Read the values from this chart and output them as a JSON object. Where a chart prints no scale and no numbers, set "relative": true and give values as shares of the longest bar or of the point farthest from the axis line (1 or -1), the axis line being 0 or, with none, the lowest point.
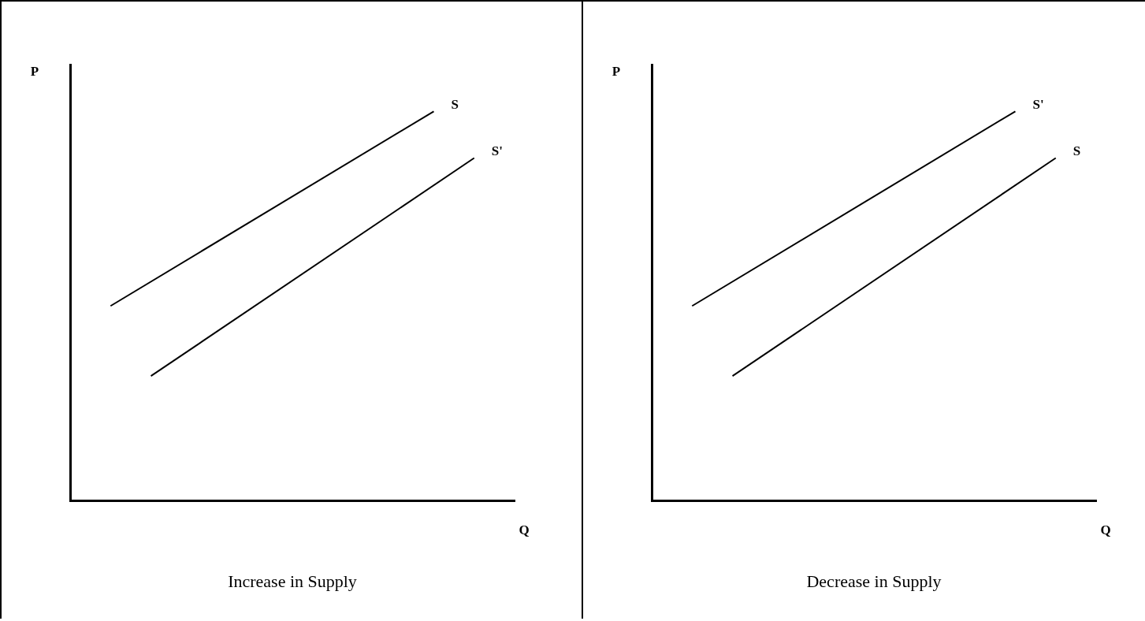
{
  "chart_data": [
    {
      "type": "line",
      "title": "Increase in Supply",
      "xlabel": "Q",
      "ylabel": "P",
      "relative": true,
      "grid": false,
      "legend": false,
      "marker": "none",
      "categories": [
        null,
        null,
        null,
        null,
        null,
        null,
        null,
        null,
        null,
        null,
        null,
        null
      ],
      "series": [
        {
          "name": "S",
          "color": "#000000",
          "values": [
            null,
            0.5,
            null,
            null,
            null,
            null,
            null,
            null,
            null,
            1.0,
            null,
            null
          ]
        },
        {
          "name": "S'",
          "color": "#000000",
          "values": [
            null,
            null,
            0.32,
            null,
            null,
            null,
            null,
            null,
            null,
            null,
            0.88,
            null
          ]
        }
      ]
    },
    {
      "type": "line",
      "title": "Decrease in Supply",
      "xlabel": "Q",
      "ylabel": "P",
      "relative": true,
      "grid": false,
      "legend": false,
      "marker": "none",
      "categories": [
        null,
        null,
        null,
        null,
        null,
        null,
        null,
        null,
        null,
        null,
        null,
        null
      ],
      "series": [
        {
          "name": "S",
          "color": "#000000",
          "values": [
            null,
            null,
            0.32,
            null,
            null,
            null,
            null,
            null,
            null,
            null,
            0.88,
            null
          ]
        },
        {
          "name": "S'",
          "color": "#000000",
          "values": [
            null,
            0.5,
            null,
            null,
            null,
            null,
            null,
            null,
            null,
            1.0,
            null,
            null
          ]
        }
      ]
    }
  ]
}
